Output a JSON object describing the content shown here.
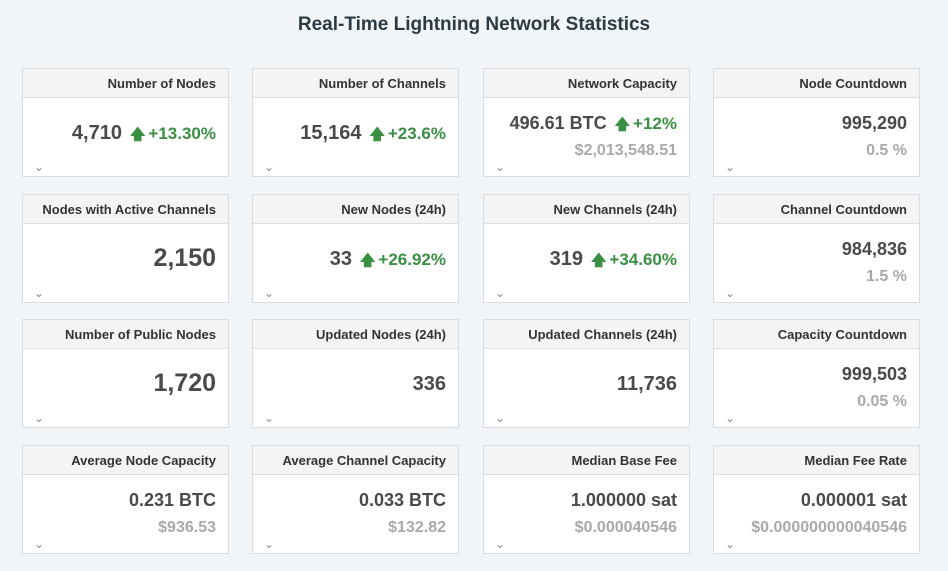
{
  "page_title": "Real-Time Lightning Network Statistics",
  "colors": {
    "positive": "#3a8f43",
    "muted": "#a9a9a9",
    "header_bg": "#f4f4f4"
  },
  "cards": [
    {
      "label": "Number of Nodes",
      "value": "4,710",
      "change": "+13.30%"
    },
    {
      "label": "Number of Channels",
      "value": "15,164",
      "change": "+23.6%"
    },
    {
      "label": "Network Capacity",
      "value": "496.61 BTC",
      "change": "+12%",
      "sub": "$2,013,548.51"
    },
    {
      "label": "Node Countdown",
      "value": "995,290",
      "sub": "0.5 %"
    },
    {
      "label": "Nodes with Active Channels",
      "value": "2,150"
    },
    {
      "label": "New Nodes (24h)",
      "value": "33",
      "change": "+26.92%"
    },
    {
      "label": "New Channels (24h)",
      "value": "319",
      "change": "+34.60%"
    },
    {
      "label": "Channel Countdown",
      "value": "984,836",
      "sub": "1.5 %"
    },
    {
      "label": "Number of Public Nodes",
      "value": "1,720"
    },
    {
      "label": "Updated Nodes (24h)",
      "value": "336"
    },
    {
      "label": "Updated Channels (24h)",
      "value": "11,736"
    },
    {
      "label": "Capacity Countdown",
      "value": "999,503",
      "sub": "0.05 %"
    },
    {
      "label": "Average Node Capacity",
      "value": "0.231 BTC",
      "sub": "$936.53"
    },
    {
      "label": "Average Channel Capacity",
      "value": "0.033 BTC",
      "sub": "$132.82"
    },
    {
      "label": "Median Base Fee",
      "value": "1.000000 sat",
      "sub": "$0.000040546"
    },
    {
      "label": "Median Fee Rate",
      "value": "0.000001 sat",
      "sub": "$0.000000000040546"
    }
  ],
  "icons": {
    "up": "arrow-up-icon",
    "expand": "chevron-down-icon"
  }
}
